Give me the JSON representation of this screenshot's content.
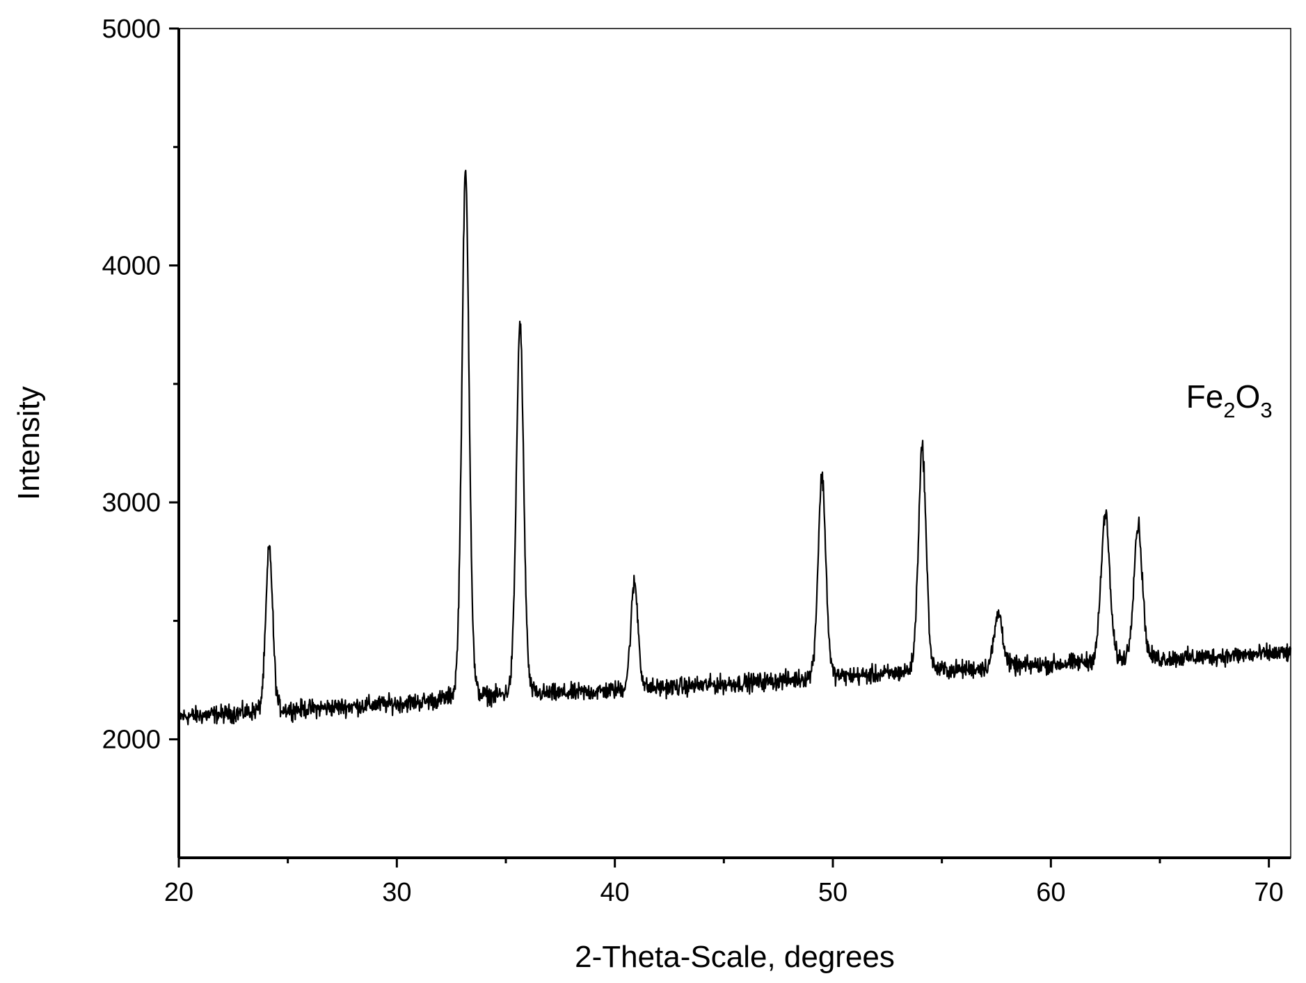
{
  "chart_data": {
    "type": "line",
    "title": "",
    "xlabel": "2-Theta-Scale, degrees",
    "ylabel": "Intensity",
    "xlim": [
      20,
      71
    ],
    "ylim": [
      1500,
      5000
    ],
    "x_ticks": [
      20,
      30,
      40,
      50,
      60,
      70
    ],
    "x_minor_ticks": [
      25,
      35,
      45,
      55,
      65
    ],
    "y_ticks": [
      2000,
      3000,
      4000,
      5000
    ],
    "y_minor_ticks": [
      2500,
      3500,
      4500
    ],
    "grid": false,
    "legend": "none",
    "annotation": {
      "base1": "Fe",
      "sub1": "2",
      "base2": "O",
      "sub2": "3",
      "x": 66.2,
      "y": 3400
    },
    "series": [
      {
        "color": "#000000",
        "baseline": {
          "x": [
            20,
            30,
            40,
            50,
            60,
            71
          ],
          "y": [
            2095,
            2150,
            2205,
            2260,
            2315,
            2365
          ]
        },
        "noise_amplitude": 38,
        "x_step": 0.02,
        "peaks": [
          {
            "x": 24.15,
            "height": 2810,
            "width": 0.16
          },
          {
            "x": 33.15,
            "height": 4390,
            "width": 0.17
          },
          {
            "x": 35.65,
            "height": 3750,
            "width": 0.17
          },
          {
            "x": 40.9,
            "height": 2660,
            "width": 0.17
          },
          {
            "x": 49.5,
            "height": 3110,
            "width": 0.18
          },
          {
            "x": 54.1,
            "height": 3235,
            "width": 0.18
          },
          {
            "x": 57.6,
            "height": 2530,
            "width": 0.2
          },
          {
            "x": 62.5,
            "height": 2950,
            "width": 0.2
          },
          {
            "x": 64.0,
            "height": 2905,
            "width": 0.2
          }
        ]
      }
    ]
  }
}
